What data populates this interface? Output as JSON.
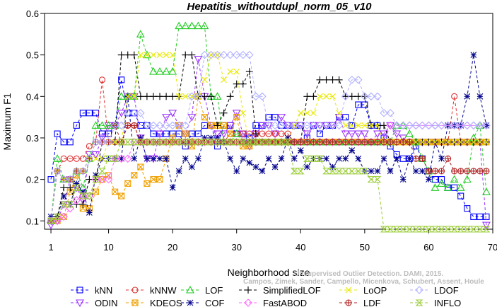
{
  "chart_data": {
    "type": "line",
    "title": "Hepatitis_withoutdupl_norm_05_v10",
    "xlabel": "Neighborhood size",
    "ylabel": "Maximum F1",
    "xlim": [
      0,
      70
    ],
    "ylim": [
      0.08,
      0.6
    ],
    "x_ticks": [
      1,
      10,
      20,
      30,
      40,
      50,
      60,
      70
    ],
    "y_ticks": [
      0.1,
      0.2,
      0.3,
      0.4,
      0.5,
      0.6
    ],
    "grid": false,
    "legend_position": "bottom",
    "credit_line1": "Unsupervised Outlier Detection. DAMI, 2015.",
    "credit_line2": "Campos, Zimek, Sander, Campello, Micenkova, Schubert, Assent, Houle",
    "x": [
      1,
      2,
      3,
      4,
      5,
      6,
      7,
      8,
      9,
      10,
      11,
      12,
      13,
      14,
      15,
      16,
      17,
      18,
      19,
      20,
      21,
      22,
      23,
      24,
      25,
      26,
      27,
      28,
      29,
      30,
      31,
      32,
      33,
      34,
      35,
      36,
      37,
      38,
      39,
      40,
      41,
      42,
      43,
      44,
      45,
      46,
      47,
      48,
      49,
      50,
      51,
      52,
      53,
      54,
      55,
      56,
      57,
      58,
      59,
      60,
      61,
      62,
      63,
      64,
      65,
      66,
      67,
      68,
      69
    ],
    "series": [
      {
        "name": "kNN",
        "color": "#0000ff",
        "marker": "square",
        "values": [
          0.2,
          0.31,
          0.29,
          0.29,
          0.33,
          0.36,
          0.36,
          0.36,
          0.31,
          0.31,
          0.33,
          0.44,
          0.36,
          0.36,
          0.33,
          0.33,
          0.31,
          0.31,
          0.31,
          0.31,
          0.31,
          0.28,
          0.31,
          0.31,
          0.33,
          0.33,
          0.28,
          0.33,
          0.33,
          0.31,
          0.31,
          0.3,
          0.33,
          0.33,
          0.35,
          0.35,
          0.33,
          0.33,
          0.33,
          0.33,
          0.3,
          0.33,
          0.31,
          0.33,
          0.33,
          0.35,
          0.35,
          0.33,
          0.38,
          0.38,
          0.33,
          0.33,
          0.3,
          0.28,
          0.26,
          0.25,
          0.25,
          0.28,
          0.25,
          0.22,
          0.2,
          0.2,
          0.18,
          0.18,
          0.16,
          0.13,
          0.11,
          0.11,
          0.11
        ]
      },
      {
        "name": "ODIN",
        "color": "#9b30ff",
        "marker": "triangle-down",
        "values": [
          0.09,
          0.1,
          0.14,
          0.2,
          0.18,
          0.15,
          0.26,
          0.26,
          0.3,
          0.33,
          0.33,
          0.36,
          0.4,
          0.4,
          0.3,
          0.25,
          0.25,
          0.31,
          0.35,
          0.36,
          0.33,
          0.31,
          0.35,
          0.49,
          0.4,
          0.33,
          0.31,
          0.31,
          0.33,
          0.36,
          0.31,
          0.28,
          0.31,
          0.33,
          0.33,
          0.31,
          0.35,
          0.33,
          0.33,
          0.33,
          0.31,
          0.33,
          0.33,
          0.33,
          0.33,
          0.35,
          0.31,
          0.31,
          0.31,
          0.31,
          0.29,
          0.31,
          0.31,
          0.33,
          0.31,
          0.3,
          0.29,
          0.29,
          0.29,
          0.29,
          0.29,
          0.29,
          0.29,
          0.29,
          0.29,
          0.29,
          0.29,
          0.29,
          0.09
        ]
      },
      {
        "name": "kNNW",
        "color": "#e03030",
        "marker": "circle",
        "values": [
          0.1,
          0.22,
          0.25,
          0.25,
          0.25,
          0.25,
          0.28,
          0.29,
          0.44,
          0.29,
          0.29,
          0.29,
          0.33,
          0.33,
          0.29,
          0.29,
          0.29,
          0.29,
          0.29,
          0.29,
          0.29,
          0.29,
          0.29,
          0.29,
          0.29,
          0.29,
          0.29,
          0.29,
          0.31,
          0.31,
          0.31,
          0.31,
          0.31,
          0.31,
          0.31,
          0.31,
          0.31,
          0.31,
          0.29,
          0.29,
          0.29,
          0.29,
          0.29,
          0.29,
          0.29,
          0.29,
          0.29,
          0.29,
          0.29,
          0.29,
          0.29,
          0.29,
          0.29,
          0.29,
          0.29,
          0.29,
          0.29,
          0.29,
          0.29,
          0.29,
          0.29,
          0.29,
          0.29,
          0.4,
          0.29,
          0.29,
          0.29,
          0.29,
          0.29
        ]
      },
      {
        "name": "KDEOS",
        "color": "#f0a000",
        "marker": "square-x",
        "values": [
          0.1,
          0.1,
          0.11,
          0.17,
          0.21,
          0.13,
          0.13,
          0.17,
          0.2,
          0.21,
          0.17,
          0.16,
          0.19,
          0.21,
          0.23,
          0.19,
          0.2,
          0.2,
          0.25,
          0.3,
          0.33,
          0.31,
          0.28,
          0.4,
          0.35,
          0.33,
          0.33,
          0.33,
          0.31,
          0.35,
          0.28,
          0.28,
          0.29,
          0.29,
          0.29,
          0.29,
          0.29,
          0.29,
          0.29,
          0.29,
          0.29,
          0.29,
          0.29,
          0.29,
          0.29,
          0.29,
          0.29,
          0.29,
          0.29,
          0.29,
          0.29,
          0.29,
          0.29,
          0.29,
          0.29,
          0.29,
          0.29,
          0.29,
          0.29,
          0.29,
          0.29,
          0.29,
          0.29,
          0.29,
          0.29,
          0.29,
          0.29,
          0.29,
          0.29
        ]
      },
      {
        "name": "LOF",
        "color": "#22cc22",
        "marker": "triangle",
        "values": [
          0.1,
          0.25,
          0.2,
          0.2,
          0.22,
          0.18,
          0.25,
          0.33,
          0.33,
          0.33,
          0.33,
          0.4,
          0.4,
          0.4,
          0.55,
          0.5,
          0.46,
          0.46,
          0.46,
          0.46,
          0.57,
          0.57,
          0.57,
          0.57,
          0.57,
          0.4,
          0.4,
          0.29,
          0.29,
          0.31,
          0.29,
          0.29,
          0.29,
          0.29,
          0.29,
          0.29,
          0.29,
          0.29,
          0.29,
          0.29,
          0.29,
          0.29,
          0.29,
          0.29,
          0.29,
          0.29,
          0.29,
          0.29,
          0.29,
          0.29,
          0.29,
          0.29,
          0.29,
          0.29,
          0.33,
          0.33,
          0.31,
          0.29,
          0.25,
          0.22,
          0.18,
          0.19,
          0.18,
          0.2,
          0.18,
          0.2,
          0.3,
          0.33,
          0.17
        ]
      },
      {
        "name": "COF",
        "color": "#00008b",
        "marker": "star",
        "values": [
          0.11,
          0.11,
          0.16,
          0.14,
          0.19,
          0.17,
          0.12,
          0.21,
          0.25,
          0.25,
          0.25,
          0.25,
          0.4,
          0.25,
          0.3,
          0.25,
          0.25,
          0.25,
          0.25,
          0.18,
          0.22,
          0.25,
          0.23,
          0.25,
          0.3,
          0.3,
          0.3,
          0.29,
          0.25,
          0.22,
          0.25,
          0.24,
          0.23,
          0.22,
          0.25,
          0.23,
          0.25,
          0.3,
          0.25,
          0.27,
          0.23,
          0.25,
          0.25,
          0.25,
          0.23,
          0.25,
          0.25,
          0.27,
          0.25,
          0.22,
          0.22,
          0.22,
          0.25,
          0.22,
          0.25,
          0.2,
          0.25,
          0.22,
          0.22,
          0.2,
          0.29,
          0.25,
          0.33,
          0.33,
          0.33,
          0.4,
          0.5,
          0.4,
          0.33
        ]
      },
      {
        "name": "SimplifiedLOF",
        "color": "#000000",
        "marker": "plus",
        "values": [
          0.1,
          0.11,
          0.18,
          0.18,
          0.14,
          0.14,
          0.2,
          0.2,
          0.29,
          0.29,
          0.29,
          0.5,
          0.5,
          0.5,
          0.4,
          0.4,
          0.4,
          0.4,
          0.4,
          0.4,
          0.4,
          0.5,
          0.5,
          0.4,
          0.4,
          0.4,
          0.33,
          0.36,
          0.4,
          0.43,
          0.43,
          0.46,
          0.31,
          0.29,
          0.29,
          0.29,
          0.29,
          0.29,
          0.29,
          0.29,
          0.4,
          0.4,
          0.44,
          0.44,
          0.44,
          0.44,
          0.4,
          0.4,
          0.4,
          0.4,
          0.33,
          0.33,
          0.33,
          0.29,
          0.29,
          0.29,
          0.29,
          0.29,
          0.29,
          0.29,
          0.29,
          0.29,
          0.29,
          0.29,
          0.29,
          0.29,
          0.29,
          0.29,
          0.29
        ]
      },
      {
        "name": "FastABOD",
        "color": "#ff66ff",
        "marker": "diamond",
        "values": [
          0.1,
          0.1,
          0.11,
          0.13,
          0.15,
          0.16,
          0.16,
          0.2,
          0.2,
          0.2,
          0.25,
          0.25,
          0.25,
          0.29,
          0.29,
          0.29,
          0.29,
          0.29,
          0.29,
          0.29,
          0.29,
          0.29,
          0.29,
          0.29,
          0.29,
          0.29,
          0.29,
          0.29,
          0.29,
          0.29,
          0.29,
          0.29,
          0.29,
          0.29,
          0.29,
          0.29,
          0.29,
          0.29,
          0.29,
          0.29,
          0.29,
          0.29,
          0.29,
          0.29,
          0.29,
          0.29,
          0.29,
          0.29,
          0.29,
          0.29,
          0.29,
          0.29,
          0.29,
          0.33,
          0.33,
          0.33,
          0.33,
          0.33,
          0.33,
          0.33,
          0.33,
          0.33,
          0.33,
          0.33,
          0.33,
          0.33,
          0.33,
          0.33,
          0.33
        ]
      },
      {
        "name": "LoOP",
        "color": "#e8e800",
        "marker": "x",
        "values": [
          0.1,
          0.22,
          0.2,
          0.2,
          0.22,
          0.22,
          0.25,
          0.25,
          0.25,
          0.29,
          0.29,
          0.29,
          0.4,
          0.4,
          0.5,
          0.5,
          0.5,
          0.5,
          0.5,
          0.5,
          0.4,
          0.4,
          0.4,
          0.4,
          0.44,
          0.5,
          0.5,
          0.44,
          0.46,
          0.46,
          0.36,
          0.29,
          0.29,
          0.29,
          0.29,
          0.29,
          0.29,
          0.29,
          0.33,
          0.36,
          0.36,
          0.36,
          0.4,
          0.4,
          0.4,
          0.36,
          0.33,
          0.33,
          0.33,
          0.33,
          0.33,
          0.33,
          0.29,
          0.29,
          0.29,
          0.29,
          0.29,
          0.29,
          0.29,
          0.29,
          0.29,
          0.29,
          0.29,
          0.29,
          0.29,
          0.29,
          0.29,
          0.29,
          0.29
        ]
      },
      {
        "name": "LDF",
        "color": "#b22222",
        "marker": "circle-plus",
        "values": [
          0.1,
          0.22,
          0.2,
          0.2,
          0.22,
          0.22,
          0.25,
          0.29,
          0.29,
          0.29,
          0.33,
          0.29,
          0.33,
          0.33,
          0.29,
          0.29,
          0.29,
          0.29,
          0.29,
          0.29,
          0.29,
          0.29,
          0.29,
          0.29,
          0.29,
          0.29,
          0.29,
          0.29,
          0.29,
          0.29,
          0.29,
          0.29,
          0.29,
          0.29,
          0.29,
          0.29,
          0.29,
          0.29,
          0.29,
          0.29,
          0.29,
          0.29,
          0.29,
          0.29,
          0.29,
          0.29,
          0.29,
          0.29,
          0.29,
          0.29,
          0.29,
          0.29,
          0.29,
          0.29,
          0.29,
          0.29,
          0.29,
          0.25,
          0.25,
          0.22,
          0.22,
          0.22,
          0.25,
          0.22,
          0.22,
          0.22,
          0.22,
          0.22,
          0.22
        ]
      },
      {
        "name": "LDOF",
        "color": "#b0b0ff",
        "marker": "diamond",
        "values": [
          0.1,
          0.22,
          0.2,
          0.2,
          0.22,
          0.22,
          0.25,
          0.29,
          0.29,
          0.29,
          0.33,
          0.33,
          0.36,
          0.36,
          0.36,
          0.33,
          0.33,
          0.33,
          0.33,
          0.33,
          0.33,
          0.33,
          0.4,
          0.4,
          0.5,
          0.5,
          0.5,
          0.5,
          0.5,
          0.5,
          0.5,
          0.5,
          0.4,
          0.4,
          0.33,
          0.33,
          0.33,
          0.33,
          0.33,
          0.33,
          0.33,
          0.33,
          0.33,
          0.33,
          0.33,
          0.33,
          0.4,
          0.44,
          0.44,
          0.4,
          0.4,
          0.4,
          0.36,
          0.36,
          0.33,
          0.33,
          0.33,
          0.33,
          0.33,
          0.33,
          0.33,
          0.33,
          0.33,
          0.33,
          0.33,
          0.33,
          0.33,
          0.33,
          0.33
        ]
      },
      {
        "name": "INFLO",
        "color": "#99cc33",
        "marker": "hourglass",
        "values": [
          0.1,
          0.11,
          0.14,
          0.14,
          0.18,
          0.16,
          0.16,
          0.2,
          0.22,
          0.25,
          0.25,
          0.29,
          0.29,
          0.29,
          0.29,
          0.29,
          0.29,
          0.29,
          0.29,
          0.29,
          0.29,
          0.29,
          0.29,
          0.29,
          0.29,
          0.29,
          0.29,
          0.29,
          0.29,
          0.29,
          0.29,
          0.29,
          0.29,
          0.29,
          0.29,
          0.29,
          0.29,
          0.29,
          0.22,
          0.22,
          0.25,
          0.25,
          0.25,
          0.22,
          0.22,
          0.22,
          0.22,
          0.22,
          0.22,
          0.22,
          0.2,
          0.2,
          0.08,
          0.08,
          0.08,
          0.08,
          0.08,
          0.08,
          0.08,
          0.08,
          0.08,
          0.08,
          0.08,
          0.08,
          0.08,
          0.08,
          0.08,
          0.08,
          0.08
        ]
      }
    ]
  }
}
